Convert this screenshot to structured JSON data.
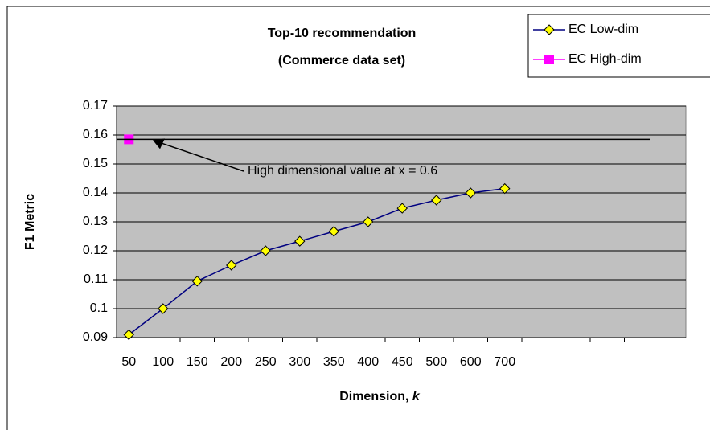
{
  "chart_data": {
    "type": "line",
    "title": [
      "Top-10 recommendation",
      "(Commerce data set)"
    ],
    "y_label": "F1 Metric",
    "x_label": {
      "text": "Dimension,",
      "italic": "k"
    },
    "annotation": "High dimensional value at x = 0.6",
    "categories": [
      "50",
      "100",
      "150",
      "200",
      "250",
      "300",
      "350",
      "400",
      "450",
      "500",
      "600",
      "700",
      null,
      null,
      null,
      null
    ],
    "series": [
      {
        "name": "EC Low-dim",
        "color": "#000080",
        "marker": "diamond",
        "marker_color": "#ffff00",
        "values": [
          0.091,
          0.1,
          0.1095,
          0.115,
          0.12,
          0.1233,
          0.1267,
          0.13,
          0.1347,
          0.1375,
          0.14,
          0.1415,
          null,
          null,
          null,
          null
        ]
      },
      {
        "name": "EC High-dim",
        "color": "#ff00ff",
        "marker": "square",
        "values": [
          0.1585,
          null,
          null,
          null,
          null,
          null,
          null,
          null,
          null,
          null,
          null,
          null,
          null,
          null,
          null,
          null
        ]
      }
    ],
    "ylim": [
      0.09,
      0.17
    ],
    "yticks": [
      0.09,
      0.1,
      0.11,
      0.12,
      0.13,
      0.14,
      0.15,
      0.16,
      0.17
    ],
    "grid": true,
    "legend": "top-right",
    "plot_background": "#c0c0c0"
  }
}
